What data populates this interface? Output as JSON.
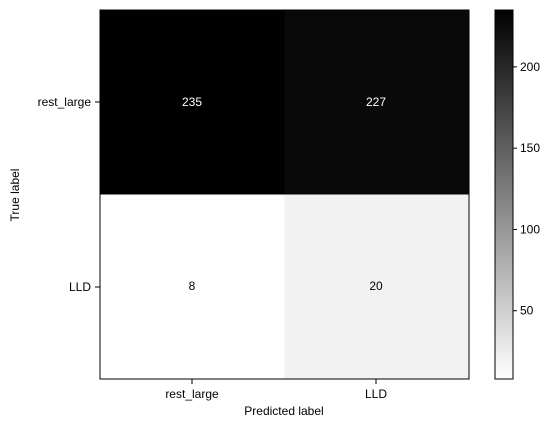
{
  "chart_data": {
    "type": "heatmap",
    "title": "",
    "xlabel": "Predicted label",
    "ylabel": "True label",
    "x_categories": [
      "rest_large",
      "LLD"
    ],
    "y_categories": [
      "rest_large",
      "LLD"
    ],
    "matrix": [
      [
        235,
        227
      ],
      [
        8,
        20
      ]
    ],
    "cell_labels": [
      [
        "235",
        "227"
      ],
      [
        "8",
        "20"
      ]
    ],
    "colormap": "Greys",
    "colorbar": {
      "vmin": 8,
      "vmax": 235,
      "ticks": [
        50,
        100,
        150,
        200
      ],
      "tick_labels": [
        "50",
        "100",
        "150",
        "200"
      ]
    },
    "grid": false
  },
  "colors": {
    "low": "#ffffff",
    "high": "#000000",
    "text_on_dark": "#ffffff",
    "text_on_light": "#000000",
    "axis": "#000000"
  }
}
